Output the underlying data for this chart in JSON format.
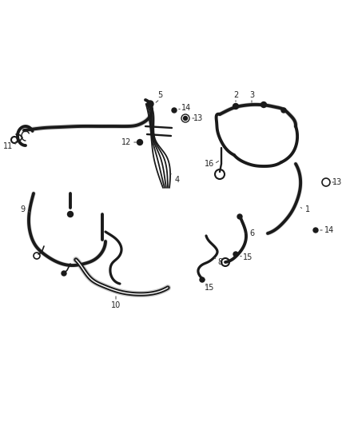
{
  "bg_color": "#ffffff",
  "line_color": "#1a1a1a",
  "gray_color": "#555555",
  "fig_width": 4.38,
  "fig_height": 5.33,
  "dpi": 100,
  "lw_hose": 2.8,
  "lw_hose_inner": 1.0,
  "lw_thin": 1.2,
  "font_size": 7.0
}
